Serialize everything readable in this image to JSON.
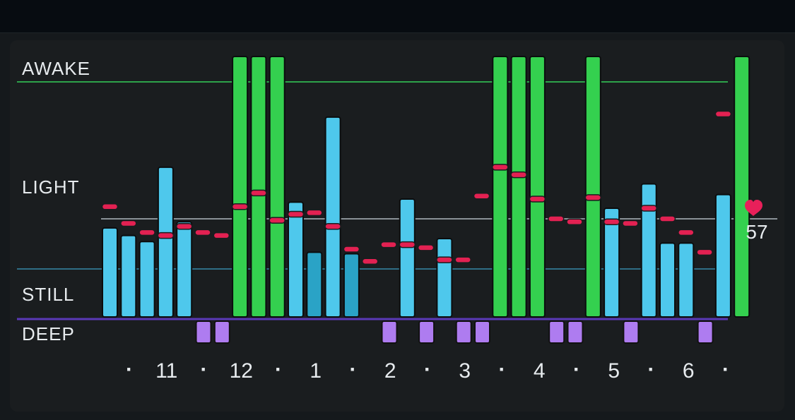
{
  "chart_data": {
    "type": "bar",
    "zones": [
      {
        "key": "awake",
        "label": "AWAKE"
      },
      {
        "key": "light",
        "label": "LIGHT"
      },
      {
        "key": "still",
        "label": "STILL"
      },
      {
        "key": "deep",
        "label": "DEEP"
      }
    ],
    "x_tick_labels": [
      "·",
      "11",
      "·",
      "12",
      "·",
      "1",
      "·",
      "2",
      "·",
      "3",
      "·",
      "4",
      "·",
      "5",
      "·",
      "6",
      "·"
    ],
    "y_scale": {
      "still_line": 0,
      "light_ref_line": 0.33,
      "awake_line": 1.27
    },
    "bars": [
      {
        "level": 0.27,
        "state": "light"
      },
      {
        "level": 0.22,
        "state": "light"
      },
      {
        "level": 0.18,
        "state": "light"
      },
      {
        "level": 0.67,
        "state": "light"
      },
      {
        "level": 0.31,
        "state": "light"
      },
      {
        "level": null,
        "state": "deep"
      },
      {
        "level": null,
        "state": "deep"
      },
      {
        "level": 1.38,
        "state": "awake"
      },
      {
        "level": 1.38,
        "state": "awake"
      },
      {
        "level": 1.38,
        "state": "awake"
      },
      {
        "level": 0.44,
        "state": "light"
      },
      {
        "level": 0.11,
        "state": "still"
      },
      {
        "level": 1.0,
        "state": "light"
      },
      {
        "level": 0.1,
        "state": "still"
      },
      {
        "level": null,
        "state": "none"
      },
      {
        "level": null,
        "state": "deep"
      },
      {
        "level": 0.46,
        "state": "light"
      },
      {
        "level": null,
        "state": "deep"
      },
      {
        "level": 0.2,
        "state": "light"
      },
      {
        "level": null,
        "state": "deep"
      },
      {
        "level": null,
        "state": "deep"
      },
      {
        "level": 1.38,
        "state": "awake"
      },
      {
        "level": 1.38,
        "state": "awake"
      },
      {
        "level": 1.38,
        "state": "awake"
      },
      {
        "level": null,
        "state": "deep"
      },
      {
        "level": null,
        "state": "deep"
      },
      {
        "level": 1.38,
        "state": "awake"
      },
      {
        "level": 0.4,
        "state": "light"
      },
      {
        "level": null,
        "state": "deep"
      },
      {
        "level": 0.56,
        "state": "light"
      },
      {
        "level": 0.17,
        "state": "light"
      },
      {
        "level": 0.17,
        "state": "light"
      },
      {
        "level": null,
        "state": "deep"
      },
      {
        "level": 0.49,
        "state": "light"
      },
      {
        "level": 1.38,
        "state": "awake"
      }
    ],
    "heart_rate_marks": [
      0.41,
      0.3,
      0.24,
      0.22,
      0.28,
      0.24,
      0.22,
      0.41,
      0.5,
      0.32,
      0.36,
      0.37,
      0.28,
      0.13,
      0.05,
      0.16,
      0.16,
      0.14,
      0.06,
      0.06,
      0.48,
      0.67,
      0.62,
      0.46,
      0.33,
      0.31,
      0.47,
      0.31,
      0.3,
      0.4,
      0.33,
      0.24,
      0.11,
      1.02
    ],
    "heart_rate": {
      "value": "57",
      "icon": "heart-icon",
      "color": "#e8205a"
    },
    "colors": {
      "awake": "#34d04f",
      "light": "#4ec8ec",
      "still": "#2aa3c6",
      "deep": "#ae7cf0",
      "heart_mark": "#e32152",
      "awake_line": "#2ea34a",
      "still_line": "#2f6e86",
      "deep_line": "#5a39b6",
      "ref_line": "#8a9197",
      "label_text": "#e7ebee"
    }
  }
}
